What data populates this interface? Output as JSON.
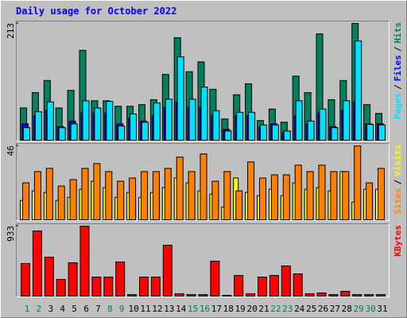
{
  "legend_separator": "/",
  "chart_data": [
    {
      "type": "bar",
      "title": "Daily usage for October 2022",
      "ylim": [
        0,
        213
      ],
      "yticks": [
        213
      ],
      "series": [
        {
          "name": "Hits",
          "color": "#00805c",
          "values": [
            59,
            87,
            109,
            59,
            91,
            164,
            72,
            72,
            62,
            62,
            65,
            74,
            120,
            187,
            125,
            143,
            93,
            39,
            83,
            103,
            36,
            57,
            33,
            117,
            87,
            194,
            74,
            109,
            213,
            65,
            49
          ]
        },
        {
          "name": "Files",
          "color": "#0000ff",
          "values": [
            30,
            45,
            55,
            25,
            35,
            50,
            50,
            50,
            30,
            40,
            35,
            45,
            60,
            70,
            60,
            60,
            45,
            20,
            45,
            45,
            25,
            30,
            15,
            45,
            30,
            50,
            25,
            55,
            70,
            30,
            30
          ]
        },
        {
          "name": "Pages",
          "color": "#00e0ff",
          "values": [
            23,
            52,
            70,
            23,
            30,
            72,
            59,
            71,
            26,
            48,
            33,
            68,
            75,
            152,
            75,
            97,
            54,
            17,
            51,
            51,
            28,
            28,
            17,
            72,
            35,
            57,
            23,
            72,
            181,
            29,
            28
          ]
        }
      ]
    },
    {
      "type": "bar",
      "ylim": [
        0,
        46
      ],
      "yticks": [
        46
      ],
      "series": [
        {
          "name": "Visits",
          "color": "#ffff00",
          "values": [
            12,
            18,
            17,
            12,
            14,
            19,
            24,
            20,
            14,
            17,
            14,
            17,
            20,
            26,
            23,
            18,
            16,
            8,
            26,
            17,
            15,
            19,
            15,
            23,
            19,
            20,
            18,
            30,
            11,
            19,
            19
          ]
        },
        {
          "name": "Sites",
          "color": "#ff8000",
          "values": [
            23,
            30,
            32,
            21,
            25,
            32,
            35,
            30,
            24,
            26,
            30,
            30,
            32,
            39,
            30,
            41,
            24,
            30,
            18,
            36,
            26,
            28,
            28,
            34,
            30,
            34,
            30,
            30,
            46,
            23,
            32
          ]
        }
      ]
    },
    {
      "type": "bar",
      "ylim": [
        0,
        933
      ],
      "yticks": [
        933
      ],
      "categories": [
        "1",
        "2",
        "3",
        "4",
        "5",
        "6",
        "7",
        "8",
        "9",
        "10",
        "11",
        "12",
        "13",
        "14",
        "15",
        "16",
        "17",
        "18",
        "19",
        "20",
        "21",
        "22",
        "23",
        "24",
        "25",
        "26",
        "27",
        "28",
        "29",
        "30",
        "31"
      ],
      "category_colors": [
        "#00805c",
        "#00805c",
        "#000000",
        "#000000",
        "#000000",
        "#000000",
        "#000000",
        "#00805c",
        "#00805c",
        "#000000",
        "#000000",
        "#000000",
        "#000000",
        "#000000",
        "#00805c",
        "#00805c",
        "#000000",
        "#000000",
        "#000000",
        "#000000",
        "#000000",
        "#00805c",
        "#00805c",
        "#000000",
        "#000000",
        "#000000",
        "#000000",
        "#000000",
        "#00805c",
        "#00805c",
        "#000000"
      ],
      "series": [
        {
          "name": "KBytes",
          "color": "#ff0000",
          "values": [
            435,
            869,
            520,
            223,
            445,
            933,
            254,
            254,
            456,
            21,
            254,
            254,
            679,
            32,
            21,
            21,
            467,
            11,
            276,
            32,
            254,
            276,
            403,
            297,
            32,
            42,
            21,
            64,
            21,
            21,
            21
          ]
        }
      ]
    }
  ]
}
